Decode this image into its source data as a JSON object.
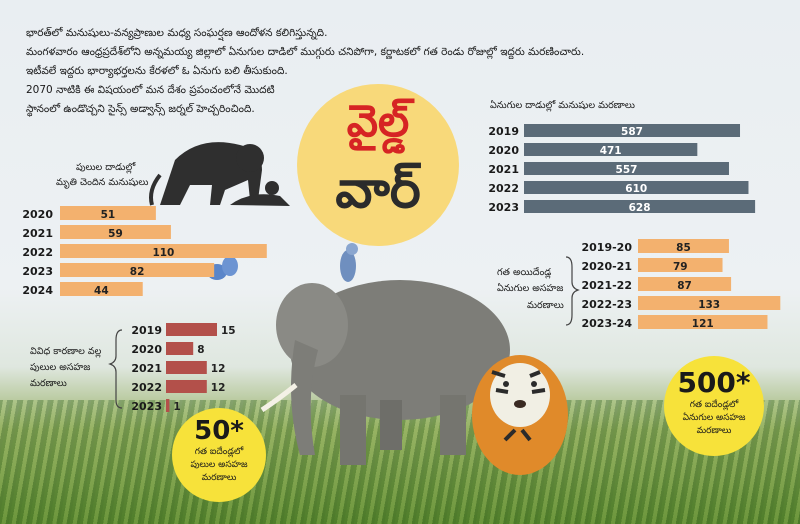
{
  "intro": [
    "భారత్‌లో మనుషులు-వన్యప్రాణుల మధ్య సంఘర్షణ ఆందోళన కలిగిస్తున్నది.",
    "మంగళవారం ఆంధ్రప్రదేశ్‌లోని అన్నమయ్య జిల్లాలో ఏనుగుల దాడిలో ముగ్గురు చనిపోగా, కర్ణాటకలో గత రెండు రోజుల్లో ఇద్దరు మరణించారు.",
    "ఇటీవలే ఇద్దరు భార్యాభర్తలను కేరళలో ఓ ఏనుగు బలి తీసుకుంది.",
    "2070 నాటికి ఈ విషయంలో మన దేశం ప్రపంచంలోనే మొదటి",
    "స్థానంలో ఉండొచ్చని సైన్స్ అడ్వాన్స్ జర్నల్ హెచ్చరించింది."
  ],
  "title": {
    "line1": "వైల్డ్",
    "line2": "వార్"
  },
  "badges": {
    "tiger": {
      "value": "50*",
      "lines": [
        "గత ఐదేండ్లలో",
        "పులుల అసహజ",
        "మరణాలు"
      ]
    },
    "elephant": {
      "value": "500*",
      "lines": [
        "గత ఐదేండ్లలో",
        "ఏనుగుల అసహజ",
        "మరణాలు"
      ]
    }
  },
  "colors": {
    "slate": "#5b6b78",
    "peach": "#f3b16e",
    "brick": "#b3504a",
    "yellow": "#f7e23a",
    "title_red": "#d62424"
  },
  "chart_data": [
    {
      "type": "bar",
      "title": "ఏనుగుల దాడుల్లో మనుషుల మరణాలు",
      "categories": [
        "2019",
        "2020",
        "2021",
        "2022",
        "2023"
      ],
      "values": [
        587,
        471,
        557,
        610,
        628
      ],
      "labels": [
        "587",
        "471",
        "557",
        "610",
        "628"
      ],
      "color": "#5b6b78"
    },
    {
      "type": "bar",
      "title_lines": [
        "పులుల దాడుల్లో",
        "మృతి చెందిన మనుషులు"
      ],
      "categories": [
        "2020",
        "2021",
        "2022",
        "2023",
        "2024"
      ],
      "values": [
        51,
        59,
        110,
        82,
        44
      ],
      "labels": [
        "51",
        "59",
        "110",
        "82",
        "44"
      ],
      "color": "#f3b16e"
    },
    {
      "type": "bar",
      "title_lines": [
        "గత అయిదేండ్ల",
        "ఏనుగుల అసహజ",
        "మరణాలు"
      ],
      "categories": [
        "2019-20",
        "2020-21",
        "2021-22",
        "2022-23",
        "2023-24"
      ],
      "values": [
        85,
        79,
        87,
        133,
        121
      ],
      "labels": [
        "85",
        "79",
        "87",
        "133",
        "121"
      ],
      "color": "#f3b16e"
    },
    {
      "type": "bar",
      "title_lines": [
        "వివిధ కారణాల వల్ల",
        "పులుల అసహజ",
        "మరణాలు"
      ],
      "categories": [
        "2019",
        "2020",
        "2021",
        "2022",
        "2023"
      ],
      "values": [
        15,
        8,
        12,
        12,
        1
      ],
      "labels": [
        "15",
        "8",
        "12",
        "12",
        "1"
      ],
      "color": "#b3504a"
    }
  ]
}
